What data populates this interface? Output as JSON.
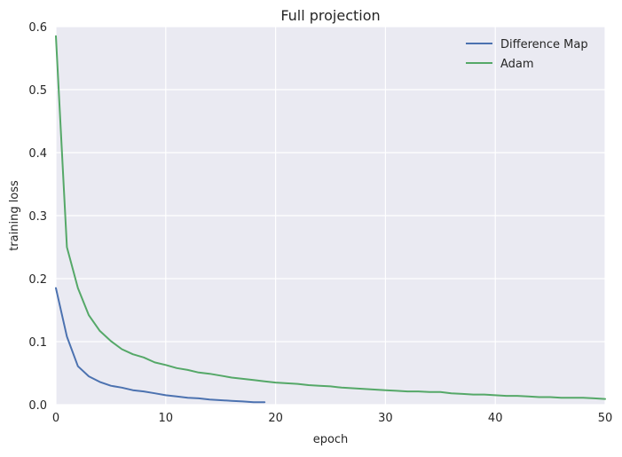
{
  "chart_data": {
    "type": "line",
    "title": "Full projection",
    "xlabel": "epoch",
    "ylabel": "training loss",
    "xlim": [
      0,
      50
    ],
    "ylim": [
      0,
      0.6
    ],
    "xticks": [
      0,
      10,
      20,
      30,
      40,
      50
    ],
    "xtick_labels": [
      "0",
      "10",
      "20",
      "30",
      "40",
      "50"
    ],
    "yticks": [
      0.0,
      0.1,
      0.2,
      0.3,
      0.4,
      0.5,
      0.6
    ],
    "ytick_labels": [
      "0.0",
      "0.1",
      "0.2",
      "0.3",
      "0.4",
      "0.5",
      "0.6"
    ],
    "grid": true,
    "legend_position": "top-right",
    "background_color": "#eaeaf2",
    "grid_color": "#ffffff",
    "series": [
      {
        "name": "Difference Map",
        "color": "#4c72b0",
        "x": [
          0,
          1,
          2,
          3,
          4,
          5,
          6,
          7,
          8,
          9,
          10,
          11,
          12,
          13,
          14,
          15,
          16,
          17,
          18,
          19
        ],
        "y": [
          0.185,
          0.108,
          0.061,
          0.045,
          0.036,
          0.03,
          0.027,
          0.023,
          0.021,
          0.018,
          0.015,
          0.013,
          0.011,
          0.01,
          0.008,
          0.007,
          0.006,
          0.005,
          0.004,
          0.004
        ]
      },
      {
        "name": "Adam",
        "color": "#55a868",
        "x": [
          0,
          1,
          2,
          3,
          4,
          5,
          6,
          7,
          8,
          9,
          10,
          11,
          12,
          13,
          14,
          15,
          16,
          17,
          18,
          19,
          20,
          21,
          22,
          23,
          24,
          25,
          26,
          27,
          28,
          29,
          30,
          31,
          32,
          33,
          34,
          35,
          36,
          37,
          38,
          39,
          40,
          41,
          42,
          43,
          44,
          45,
          46,
          47,
          48,
          49,
          50
        ],
        "y": [
          0.585,
          0.25,
          0.185,
          0.142,
          0.117,
          0.101,
          0.088,
          0.08,
          0.075,
          0.067,
          0.063,
          0.058,
          0.055,
          0.051,
          0.049,
          0.046,
          0.043,
          0.041,
          0.039,
          0.037,
          0.035,
          0.034,
          0.033,
          0.031,
          0.03,
          0.029,
          0.027,
          0.026,
          0.025,
          0.024,
          0.023,
          0.022,
          0.021,
          0.021,
          0.02,
          0.02,
          0.018,
          0.017,
          0.016,
          0.016,
          0.015,
          0.014,
          0.014,
          0.013,
          0.012,
          0.012,
          0.011,
          0.011,
          0.011,
          0.01,
          0.009
        ]
      }
    ]
  }
}
